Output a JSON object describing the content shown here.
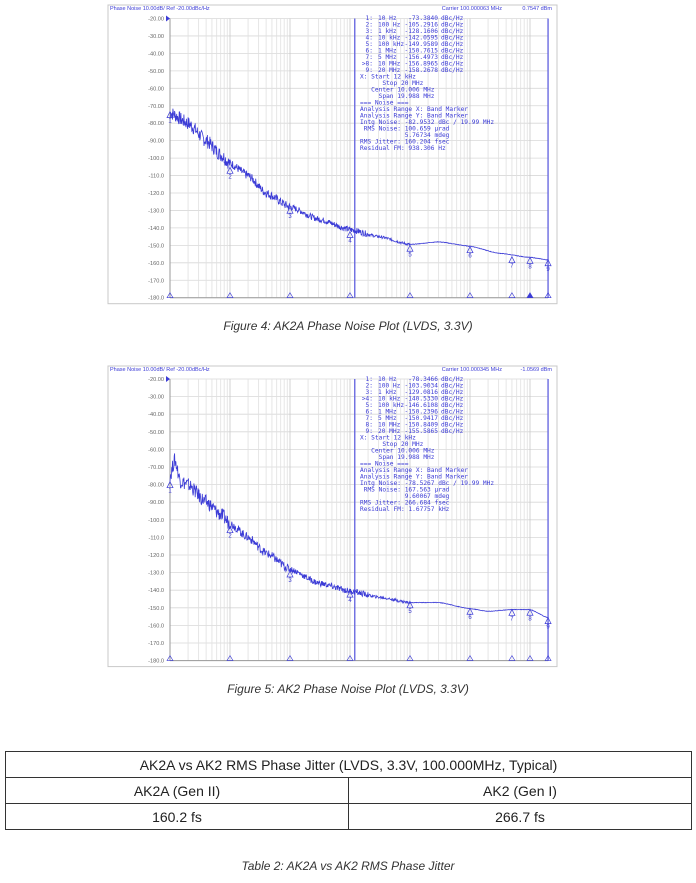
{
  "chart_data": [
    {
      "type": "line",
      "header": "Phase Noise 10.00dB/ Ref -20.00dBc/Hz",
      "carrier": "Carrier 100.000063 MHz",
      "carrier_power": "0.7547 dBm",
      "x_scale": "log",
      "xlim_hz": [
        10,
        20000000
      ],
      "ylim": [
        -180,
        -20
      ],
      "y_ticks": [
        "-20.00",
        "-30.00",
        "-40.00",
        "-50.00",
        "-60.00",
        "-70.00",
        "-80.00",
        "-90.00",
        "-100.0",
        "-110.0",
        "-120.0",
        "-130.0",
        "-140.0",
        "-150.0",
        "-160.0",
        "-170.0",
        "-180.0"
      ],
      "grid": true,
      "band_start_hz": 12000,
      "band_stop_hz": 20000000,
      "trace_color": "#3b3bd6",
      "markers": [
        {
          "num": "1",
          "label": "1:",
          "freq": "10 Hz",
          "f": 10,
          "value": "-73.3840",
          "unit": "dBc/Hz",
          "y": -73.384
        },
        {
          "num": "2",
          "label": "2:",
          "freq": "100 Hz",
          "f": 100,
          "value": "-105.2916",
          "unit": "dBc/Hz",
          "y": -105.2916
        },
        {
          "num": "3",
          "label": "3:",
          "freq": "1 kHz",
          "f": 1000,
          "value": "-128.1606",
          "unit": "dBc/Hz",
          "y": -128.1606
        },
        {
          "num": "4",
          "label": "4:",
          "freq": "10 kHz",
          "f": 10000,
          "value": "-142.0595",
          "unit": "dBc/Hz",
          "y": -142.0595
        },
        {
          "num": "5",
          "label": "5:",
          "freq": "100 kHz",
          "f": 100000,
          "value": "-149.9589",
          "unit": "dBc/Hz",
          "y": -149.9589
        },
        {
          "num": "6",
          "label": "6:",
          "freq": "1 MHz",
          "f": 1000000,
          "value": "-150.7615",
          "unit": "dBc/Hz",
          "y": -150.7615
        },
        {
          "num": "7",
          "label": "7:",
          "freq": "5 MHz",
          "f": 5000000,
          "value": "-156.4973",
          "unit": "dBc/Hz",
          "y": -156.4973
        },
        {
          "num": "8",
          "label": ">8:",
          "freq": "10 MHz",
          "f": 10000000,
          "value": "-156.8965",
          "unit": "dBc/Hz",
          "y": -156.8965
        },
        {
          "num": "9",
          "label": "9:",
          "freq": "20 MHz",
          "f": 20000000,
          "value": "-158.2678",
          "unit": "dBc/Hz",
          "y": -158.2678
        }
      ],
      "summary_lines": [
        "X: Start 12 kHz",
        "      Stop 20 MHz",
        "   Center 10.006 MHz",
        "     Span 19.988 MHz",
        "=== Noise ===",
        "Analysis Range X: Band Marker",
        "Analysis Range Y: Band Marker",
        "Intg Noise: -82.9532 dBc / 19.99 MHz",
        " RMS Noise: 100.659 µrad",
        "            5.76734 mdeg",
        "RMS Jitter: 160.204 fsec",
        "Residual FM: 938.306 Hz"
      ],
      "shape": [
        [
          10,
          -74
        ],
        [
          20,
          -80
        ],
        [
          40,
          -90
        ],
        [
          70,
          -98
        ],
        [
          100,
          -103
        ],
        [
          200,
          -110
        ],
        [
          400,
          -120
        ],
        [
          1000,
          -128
        ],
        [
          3000,
          -135
        ],
        [
          10000,
          -141
        ],
        [
          30000,
          -145
        ],
        [
          100000,
          -149.5
        ],
        [
          300000,
          -148
        ],
        [
          1000000,
          -150.5
        ],
        [
          3000000,
          -154.5
        ],
        [
          10000000,
          -156.9
        ],
        [
          20000000,
          -158.3
        ]
      ],
      "caption": "Figure 4: AK2A Phase Noise Plot (LVDS, 3.3V)"
    },
    {
      "type": "line",
      "header": "Phase Noise 10.00dB/ Ref -20.00dBc/Hz",
      "carrier": "Carrier 100.000345 MHz",
      "carrier_power": "-1.0569 dBm",
      "x_scale": "log",
      "xlim_hz": [
        10,
        20000000
      ],
      "ylim": [
        -180,
        -20
      ],
      "y_ticks": [
        "-20.00",
        "-30.00",
        "-40.00",
        "-50.00",
        "-60.00",
        "-70.00",
        "-80.00",
        "-90.00",
        "-100.0",
        "-110.0",
        "-120.0",
        "-130.0",
        "-140.0",
        "-150.0",
        "-160.0",
        "-170.0",
        "-180.0"
      ],
      "grid": true,
      "band_start_hz": 12000,
      "band_stop_hz": 20000000,
      "trace_color": "#3b3bd6",
      "markers": [
        {
          "num": "1",
          "label": "1:",
          "freq": "10 Hz",
          "f": 10,
          "value": "-78.3466",
          "unit": "dBc/Hz",
          "y": -78.3466
        },
        {
          "num": "2",
          "label": "2:",
          "freq": "100 Hz",
          "f": 100,
          "value": "-103.9034",
          "unit": "dBc/Hz",
          "y": -103.9034
        },
        {
          "num": "3",
          "label": "3:",
          "freq": "1 kHz",
          "f": 1000,
          "value": "-129.0816",
          "unit": "dBc/Hz",
          "y": -129.0816
        },
        {
          "num": "4",
          "label": ">4:",
          "freq": "10 kHz",
          "f": 10000,
          "value": "-140.5330",
          "unit": "dBc/Hz",
          "y": -140.533
        },
        {
          "num": "5",
          "label": "5:",
          "freq": "100 kHz",
          "f": 100000,
          "value": "-146.6108",
          "unit": "dBc/Hz",
          "y": -146.6108
        },
        {
          "num": "6",
          "label": "6:",
          "freq": "1 MHz",
          "f": 1000000,
          "value": "-150.2396",
          "unit": "dBc/Hz",
          "y": -150.2396
        },
        {
          "num": "7",
          "label": "7:",
          "freq": "5 MHz",
          "f": 5000000,
          "value": "-150.9417",
          "unit": "dBc/Hz",
          "y": -150.9417
        },
        {
          "num": "8",
          "label": "8:",
          "freq": "10 MHz",
          "f": 10000000,
          "value": "-150.8409",
          "unit": "dBc/Hz",
          "y": -150.8409
        },
        {
          "num": "9",
          "label": "9:",
          "freq": "20 MHz",
          "f": 20000000,
          "value": "-155.5865",
          "unit": "dBc/Hz",
          "y": -155.5865
        }
      ],
      "summary_lines": [
        "X: Start 12 kHz",
        "      Stop 20 MHz",
        "   Center 10.006 MHz",
        "     Span 19.988 MHz",
        "=== Noise ===",
        "Analysis Range X: Band Marker",
        "Analysis Range Y: Band Marker",
        "Intg Noise: -78.5267 dBc / 19.99 MHz",
        " RMS Noise: 167.563 µrad",
        "            9.60067 mdeg",
        "RMS Jitter: 266.684 fsec",
        "Residual FM: 1.67757 kHz"
      ],
      "shape": [
        [
          10,
          -75
        ],
        [
          12,
          -66
        ],
        [
          15,
          -78
        ],
        [
          20,
          -80
        ],
        [
          40,
          -90
        ],
        [
          70,
          -97
        ],
        [
          100,
          -102
        ],
        [
          200,
          -110
        ],
        [
          400,
          -119
        ],
        [
          1000,
          -128
        ],
        [
          3000,
          -136
        ],
        [
          10000,
          -140.5
        ],
        [
          30000,
          -144
        ],
        [
          100000,
          -147
        ],
        [
          300000,
          -147
        ],
        [
          1000000,
          -150.5
        ],
        [
          2000000,
          -152
        ],
        [
          5000000,
          -151
        ],
        [
          10000000,
          -151
        ],
        [
          20000000,
          -155.6
        ]
      ],
      "caption": "Figure 5: AK2 Phase Noise Plot (LVDS, 3.3V)"
    }
  ],
  "table": {
    "title": "AK2A vs AK2 RMS Phase Jitter (LVDS, 3.3V, 100.000MHz, Typical)",
    "headers": [
      "AK2A (Gen II)",
      "AK2 (Gen I)"
    ],
    "values": [
      "160.2 fs",
      "266.7 fs"
    ],
    "caption": "Table 2: AK2A vs AK2 RMS Phase Jitter"
  }
}
